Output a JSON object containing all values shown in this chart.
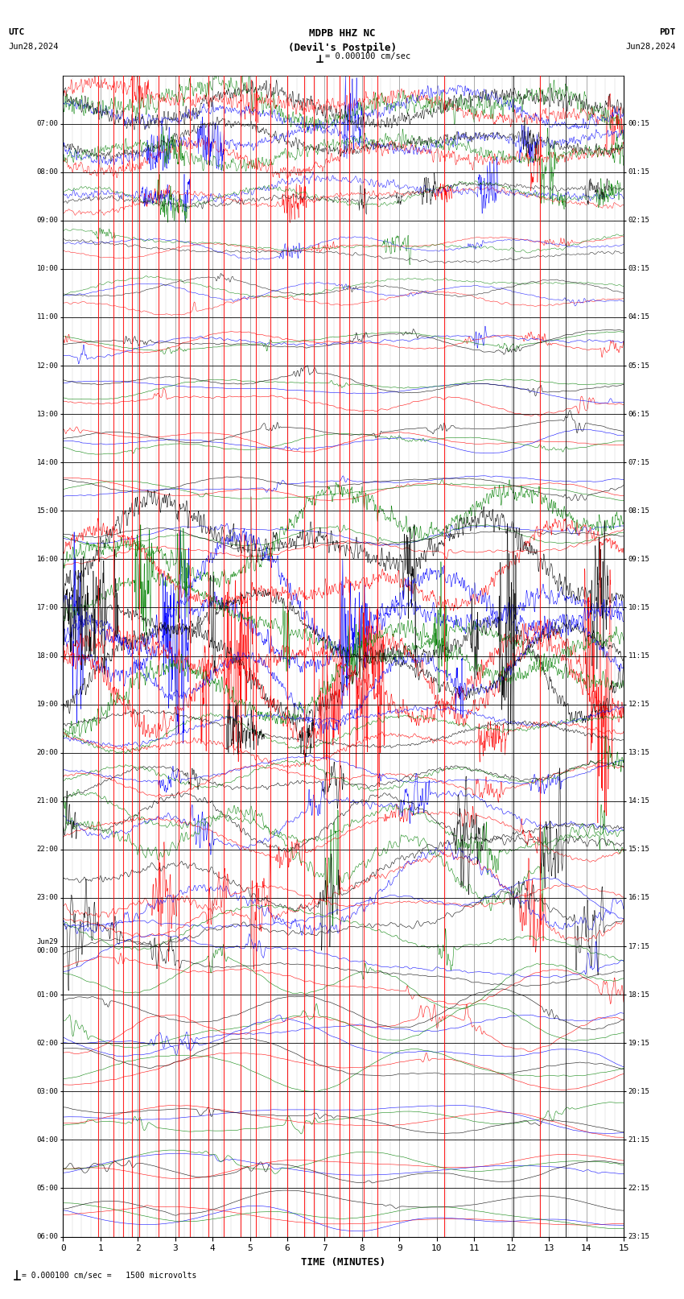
{
  "title_line1": "MDPB HHZ NC",
  "title_line2": "(Devil's Postpile)",
  "scale_text": "= 0.000100 cm/sec",
  "left_label_1": "UTC",
  "left_label_2": "Jun28,2024",
  "right_label_1": "PDT",
  "right_label_2": "Jun28,2024",
  "bottom_label": "TIME (MINUTES)",
  "bottom_note": "= 0.000100 cm/sec =   1500 microvolts",
  "utc_times": [
    "07:00",
    "08:00",
    "09:00",
    "10:00",
    "11:00",
    "12:00",
    "13:00",
    "14:00",
    "15:00",
    "16:00",
    "17:00",
    "18:00",
    "19:00",
    "20:00",
    "21:00",
    "22:00",
    "23:00",
    "Jun29\n00:00",
    "01:00",
    "02:00",
    "03:00",
    "04:00",
    "05:00",
    "06:00"
  ],
  "pdt_times": [
    "00:15",
    "01:15",
    "02:15",
    "03:15",
    "04:15",
    "05:15",
    "06:15",
    "07:15",
    "08:15",
    "09:15",
    "10:15",
    "11:15",
    "12:15",
    "13:15",
    "14:15",
    "15:15",
    "16:15",
    "17:15",
    "18:15",
    "19:15",
    "20:15",
    "21:15",
    "22:15",
    "23:15"
  ],
  "n_rows": 24,
  "n_minutes": 15,
  "colors": [
    "red",
    "blue",
    "green",
    "black"
  ],
  "bg_color": "white",
  "major_grid_color": "#888888",
  "minor_grid_color": "#cccccc",
  "event_times_red": [
    0.95,
    1.35,
    1.6,
    1.85,
    2.05,
    2.55,
    3.1,
    3.4,
    3.9,
    4.3,
    4.75,
    5.15,
    5.55,
    6.0,
    6.45,
    6.7,
    7.05,
    7.4,
    7.65,
    8.05,
    8.4,
    10.2,
    12.75
  ],
  "event_times_black": [
    12.05,
    13.45
  ],
  "figsize": [
    8.5,
    16.13
  ],
  "dpi": 100,
  "row_amplitudes": [
    0.55,
    0.45,
    0.35,
    0.28,
    0.28,
    0.28,
    0.28,
    0.28,
    0.28,
    0.3,
    0.75,
    0.85,
    0.8,
    0.55,
    0.42,
    0.55,
    0.85,
    0.75,
    0.65,
    0.58,
    0.55,
    0.38,
    0.32,
    0.3
  ],
  "row_smooth": [
    2,
    2,
    3,
    5,
    6,
    7,
    8,
    9,
    10,
    8,
    2,
    2,
    2,
    3,
    4,
    4,
    4,
    6,
    8,
    10,
    12,
    15,
    18,
    20
  ],
  "row_noise": [
    0.4,
    0.35,
    0.25,
    0.15,
    0.12,
    0.1,
    0.1,
    0.1,
    0.1,
    0.12,
    0.3,
    0.35,
    0.3,
    0.2,
    0.15,
    0.2,
    0.3,
    0.2,
    0.15,
    0.12,
    0.1,
    0.08,
    0.06,
    0.05
  ]
}
